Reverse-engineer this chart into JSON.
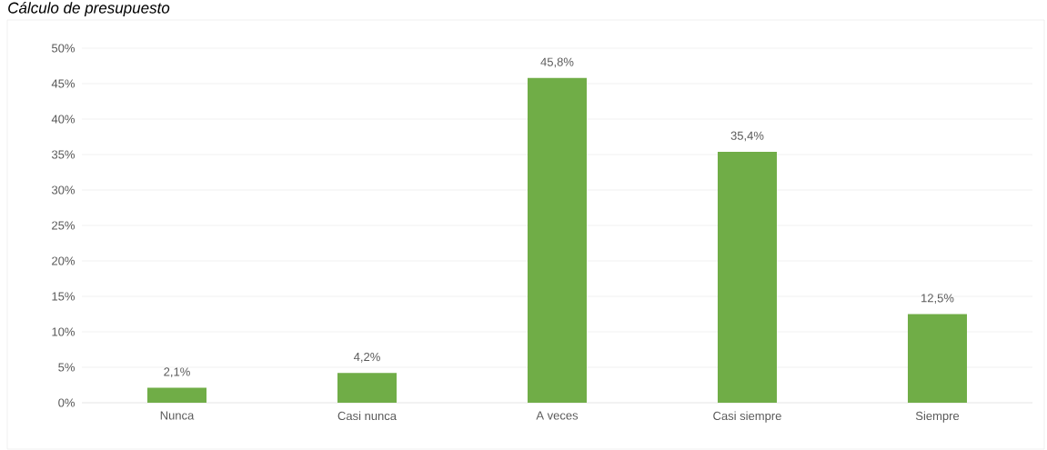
{
  "chart_data": {
    "type": "bar",
    "title": "Cálculo de presupuesto",
    "categories": [
      "Nunca",
      "Casi nunca",
      "A veces",
      "Casi siempre",
      "Siempre"
    ],
    "values": [
      2.1,
      4.2,
      45.8,
      35.4,
      12.5
    ],
    "value_labels": [
      "2,1%",
      "4,2%",
      "45,8%",
      "35,4%",
      "12,5%"
    ],
    "color": "#70ad47",
    "ylim": [
      0,
      50
    ],
    "yticks": [
      {
        "value": 0,
        "label": "0%"
      },
      {
        "value": 5,
        "label": "5%"
      },
      {
        "value": 10,
        "label": "10%"
      },
      {
        "value": 15,
        "label": "15%"
      },
      {
        "value": 20,
        "label": "20%"
      },
      {
        "value": 25,
        "label": "25%"
      },
      {
        "value": 30,
        "label": "30%"
      },
      {
        "value": 35,
        "label": "35%"
      },
      {
        "value": 40,
        "label": "40%"
      },
      {
        "value": 45,
        "label": "45%"
      },
      {
        "value": 50,
        "label": "50%"
      }
    ],
    "grid": "y"
  }
}
